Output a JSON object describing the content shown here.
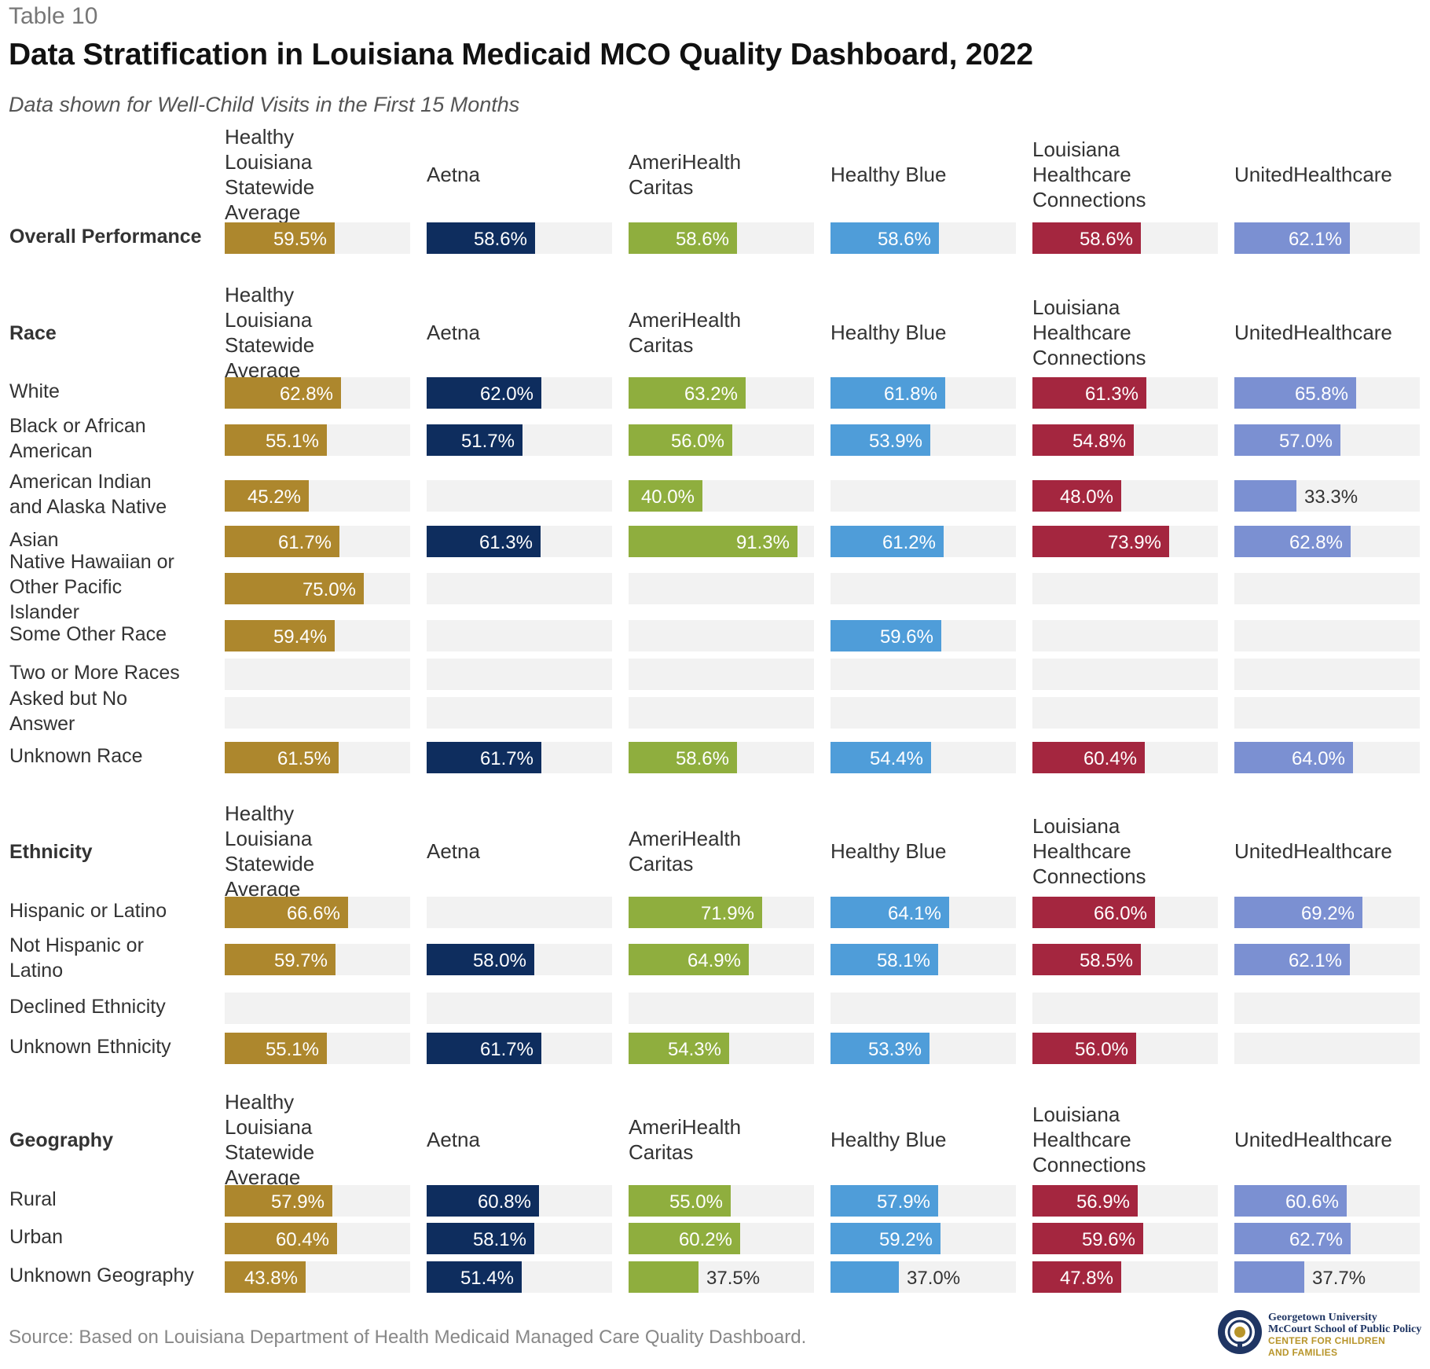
{
  "header": {
    "table_label": "Table 10",
    "title": "Data Stratification in Louisiana Medicaid MCO Quality Dashboard, 2022",
    "subtitle": "Data shown for Well-Child Visits in the First 15 Months"
  },
  "footer": {
    "source": "Source: Based on Louisiana Department of Health Medicaid Managed Care Quality Dashboard.",
    "logo_line1": "Georgetown University",
    "logo_line2": "McCourt School of Public Policy",
    "logo_line3": "CENTER FOR CHILDREN",
    "logo_line4": "AND FAMILIES"
  },
  "chart_data": {
    "type": "bar",
    "orientation": "horizontal",
    "unit": "%",
    "xlim": [
      0,
      100
    ],
    "series": [
      {
        "name": "Healthy Louisiana Statewide Average",
        "color": "#AD872D"
      },
      {
        "name": "Aetna",
        "color": "#0E2D5E"
      },
      {
        "name": "AmeriHealth Caritas",
        "color": "#8FAE3E"
      },
      {
        "name": "Healthy Blue",
        "color": "#4F9DD9"
      },
      {
        "name": "Louisiana Healthcare Connections",
        "color": "#A4263F"
      },
      {
        "name": "UnitedHealthcare",
        "color": "#7B90D2"
      }
    ],
    "sections": [
      {
        "title": "Overall Performance",
        "header_row": false,
        "rows": [
          {
            "label": "",
            "values": [
              59.5,
              58.6,
              58.6,
              58.6,
              58.6,
              62.1
            ]
          }
        ]
      },
      {
        "title": "Race",
        "header_row": true,
        "rows": [
          {
            "label": "White",
            "values": [
              62.8,
              62.0,
              63.2,
              61.8,
              61.3,
              65.8
            ]
          },
          {
            "label": "Black or African American",
            "values": [
              55.1,
              51.7,
              56.0,
              53.9,
              54.8,
              57.0
            ]
          },
          {
            "label": "American Indian and Alaska Native",
            "values": [
              45.2,
              null,
              40.0,
              null,
              48.0,
              33.3
            ]
          },
          {
            "label": "Asian",
            "values": [
              61.7,
              61.3,
              91.3,
              61.2,
              73.9,
              62.8
            ]
          },
          {
            "label": "Native Hawaiian or Other Pacific Islander",
            "values": [
              75.0,
              null,
              null,
              null,
              null,
              null
            ]
          },
          {
            "label": "Some Other Race",
            "values": [
              59.4,
              null,
              null,
              59.6,
              null,
              null
            ]
          },
          {
            "label": "Two or More Races",
            "values": [
              null,
              null,
              null,
              null,
              null,
              null
            ]
          },
          {
            "label": "Asked but No Answer",
            "values": [
              null,
              null,
              null,
              null,
              null,
              null
            ]
          },
          {
            "label": "Unknown Race",
            "values": [
              61.5,
              61.7,
              58.6,
              54.4,
              60.4,
              64.0
            ]
          }
        ]
      },
      {
        "title": "Ethnicity",
        "header_row": true,
        "rows": [
          {
            "label": "Hispanic or Latino",
            "values": [
              66.6,
              null,
              71.9,
              64.1,
              66.0,
              69.2
            ]
          },
          {
            "label": "Not Hispanic or Latino",
            "values": [
              59.7,
              58.0,
              64.9,
              58.1,
              58.5,
              62.1
            ]
          },
          {
            "label": "Declined Ethnicity",
            "values": [
              null,
              null,
              null,
              null,
              null,
              null
            ]
          },
          {
            "label": "Unknown Ethnicity",
            "values": [
              55.1,
              61.7,
              54.3,
              53.3,
              56.0,
              null
            ]
          }
        ]
      },
      {
        "title": "Geography",
        "header_row": true,
        "rows": [
          {
            "label": "Rural",
            "values": [
              57.9,
              60.8,
              55.0,
              57.9,
              56.9,
              60.6
            ]
          },
          {
            "label": "Urban",
            "values": [
              60.4,
              58.1,
              60.2,
              59.2,
              59.6,
              62.7
            ]
          },
          {
            "label": "Unknown Geography",
            "values": [
              43.8,
              51.4,
              37.5,
              37.0,
              47.8,
              37.7
            ]
          }
        ]
      }
    ]
  }
}
